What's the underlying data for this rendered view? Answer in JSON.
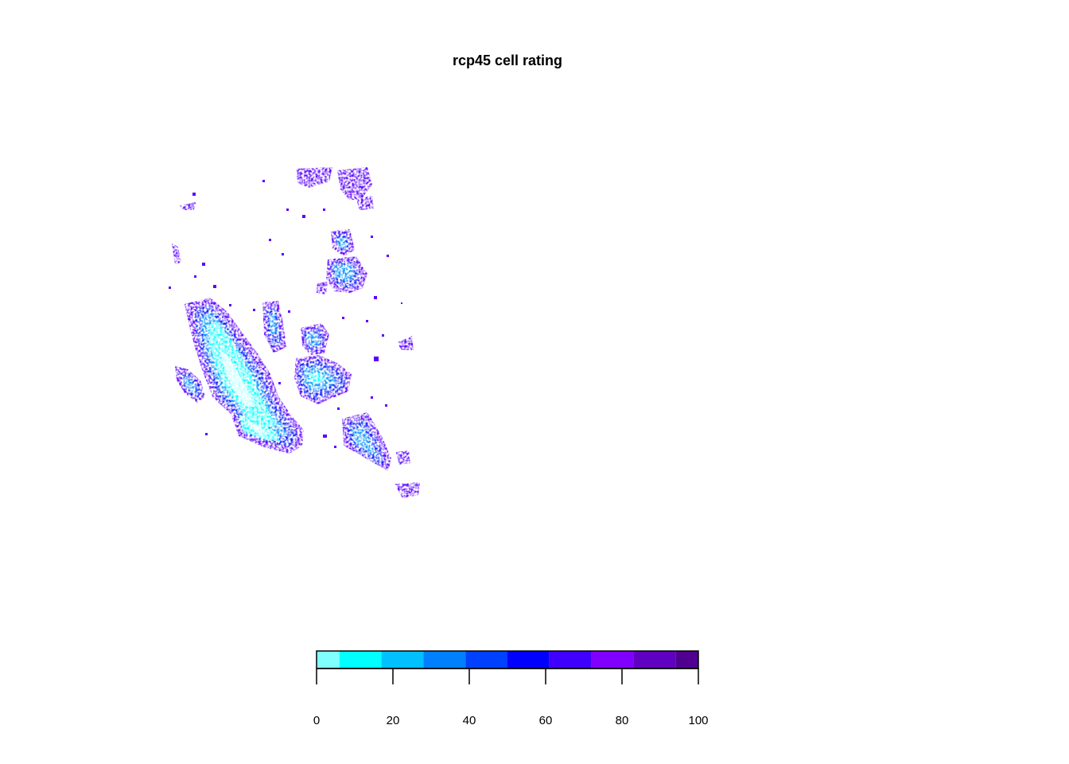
{
  "chart_data": {
    "type": "heatmap",
    "title": "rcp45 cell rating",
    "xlabel": "",
    "ylabel": "",
    "legend": {
      "position": "bottom",
      "range": [
        0,
        100
      ],
      "ticks": [
        0,
        20,
        40,
        60,
        80,
        100
      ],
      "tick_labels": [
        "0",
        "20",
        "40",
        "60",
        "80",
        "100"
      ],
      "breaks": [
        0,
        6,
        17,
        28,
        39,
        50,
        61,
        72,
        83,
        94,
        100
      ],
      "colors": [
        "#80ffff",
        "#00ffff",
        "#00c0ff",
        "#0080ff",
        "#0040ff",
        "#0000ff",
        "#4000ff",
        "#8000ff",
        "#6000c0",
        "#500090"
      ]
    },
    "grid": false
  }
}
